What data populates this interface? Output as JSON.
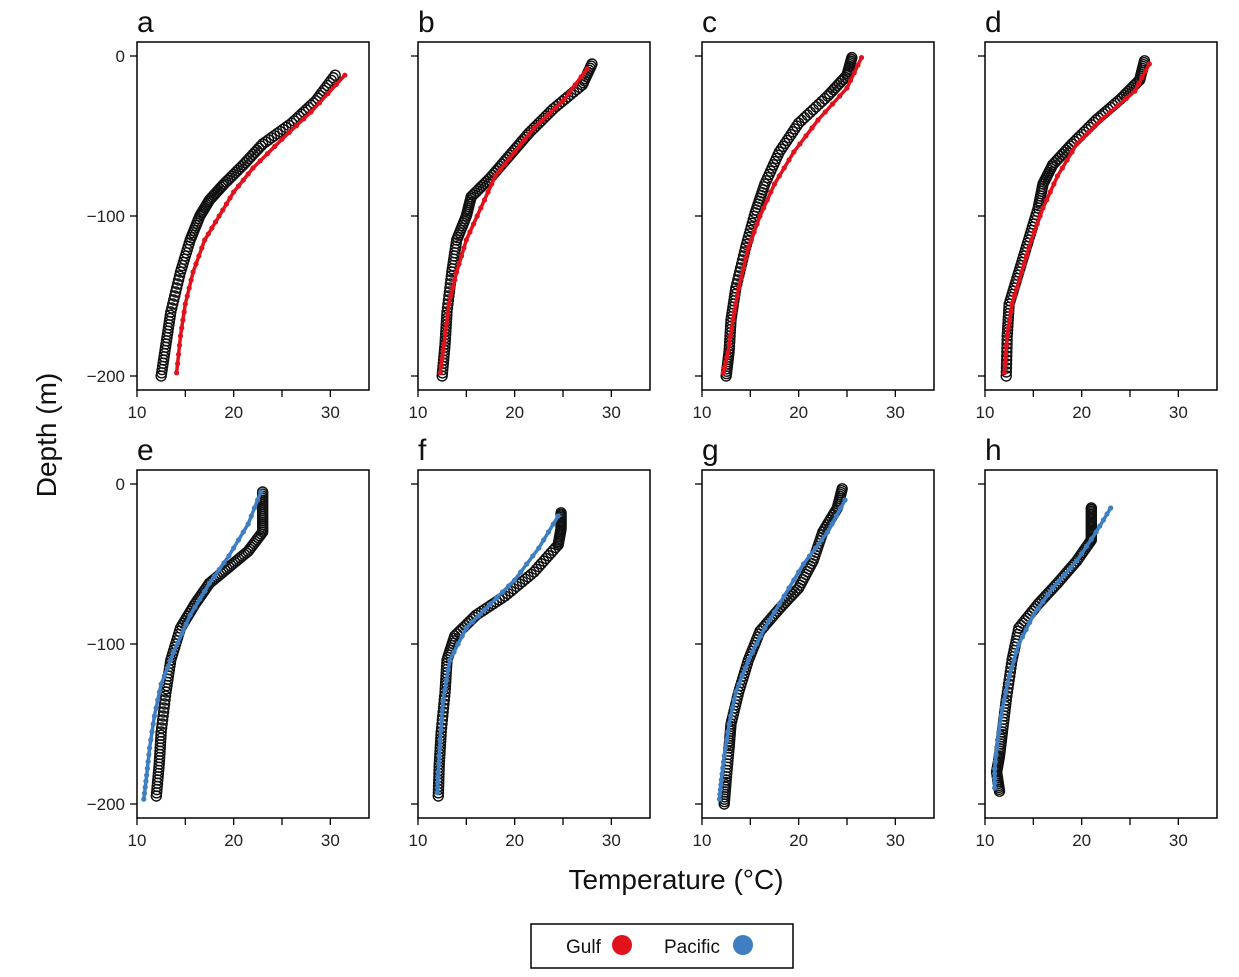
{
  "chart_data": {
    "type": "scatter",
    "xlabel": "Temperature (°C)",
    "ylabel": "Depth (m)",
    "xlim": [
      10,
      34
    ],
    "ylim": [
      -200,
      0
    ],
    "x_ticks": [
      10,
      20,
      30
    ],
    "y_ticks": [
      0,
      -100,
      -200
    ],
    "observed_marker": "open black circles",
    "legend": {
      "position": "bottom-center",
      "entries": [
        {
          "label": "Gulf",
          "color": "#e0121c"
        },
        {
          "label": "Pacific",
          "color": "#3f7ec0"
        }
      ]
    },
    "panels": [
      {
        "label": "a",
        "model": "Gulf",
        "observed": [
          [
            30.5,
            -12
          ],
          [
            28.5,
            -28
          ],
          [
            26,
            -42
          ],
          [
            23,
            -55
          ],
          [
            21,
            -68
          ],
          [
            19,
            -80
          ],
          [
            17.5,
            -90
          ],
          [
            16.5,
            -100
          ],
          [
            15.5,
            -115
          ],
          [
            14.5,
            -135
          ],
          [
            13.5,
            -160
          ],
          [
            13,
            -180
          ],
          [
            12.5,
            -200
          ]
        ],
        "model_profile": [
          [
            31.5,
            -12
          ],
          [
            28,
            -35
          ],
          [
            25,
            -52
          ],
          [
            22,
            -70
          ],
          [
            20,
            -85
          ],
          [
            18.5,
            -100
          ],
          [
            17,
            -115
          ],
          [
            15.8,
            -135
          ],
          [
            15,
            -155
          ],
          [
            14.5,
            -175
          ],
          [
            14.1,
            -198
          ]
        ]
      },
      {
        "label": "b",
        "model": "Gulf",
        "observed": [
          [
            28,
            -5
          ],
          [
            27,
            -18
          ],
          [
            24,
            -33
          ],
          [
            21.5,
            -48
          ],
          [
            19.5,
            -62
          ],
          [
            17.5,
            -76
          ],
          [
            15.5,
            -88
          ],
          [
            15,
            -100
          ],
          [
            14,
            -115
          ],
          [
            13.5,
            -135
          ],
          [
            13,
            -160
          ],
          [
            12.8,
            -180
          ],
          [
            12.5,
            -200
          ]
        ],
        "model_profile": [
          [
            27.5,
            -8
          ],
          [
            25,
            -28
          ],
          [
            22,
            -45
          ],
          [
            20,
            -60
          ],
          [
            18,
            -75
          ],
          [
            16.5,
            -95
          ],
          [
            15,
            -115
          ],
          [
            14,
            -135
          ],
          [
            13.2,
            -155
          ],
          [
            12.7,
            -180
          ],
          [
            12.3,
            -198
          ]
        ]
      },
      {
        "label": "c",
        "model": "Gulf",
        "observed": [
          [
            25.5,
            -1
          ],
          [
            25,
            -12
          ],
          [
            23,
            -25
          ],
          [
            20,
            -42
          ],
          [
            18,
            -60
          ],
          [
            16.5,
            -80
          ],
          [
            15.5,
            -98
          ],
          [
            14.5,
            -120
          ],
          [
            13.5,
            -145
          ],
          [
            13,
            -165
          ],
          [
            12.8,
            -185
          ],
          [
            12.5,
            -200
          ]
        ],
        "model_profile": [
          [
            26.5,
            -1
          ],
          [
            25,
            -20
          ],
          [
            22,
            -40
          ],
          [
            19.5,
            -60
          ],
          [
            17.5,
            -80
          ],
          [
            16,
            -100
          ],
          [
            14.8,
            -120
          ],
          [
            13.8,
            -145
          ],
          [
            13.2,
            -165
          ],
          [
            12.7,
            -185
          ],
          [
            12.2,
            -198
          ]
        ]
      },
      {
        "label": "d",
        "model": "Gulf",
        "observed": [
          [
            26.5,
            -3
          ],
          [
            26,
            -15
          ],
          [
            24,
            -27
          ],
          [
            21.5,
            -40
          ],
          [
            19,
            -55
          ],
          [
            17,
            -68
          ],
          [
            16,
            -80
          ],
          [
            15.5,
            -95
          ],
          [
            14.5,
            -115
          ],
          [
            13.5,
            -135
          ],
          [
            12.5,
            -155
          ],
          [
            12.3,
            -175
          ],
          [
            12.2,
            -200
          ]
        ],
        "model_profile": [
          [
            27,
            -5
          ],
          [
            25.5,
            -22
          ],
          [
            22,
            -40
          ],
          [
            19.5,
            -55
          ],
          [
            17.5,
            -75
          ],
          [
            16,
            -95
          ],
          [
            14.8,
            -115
          ],
          [
            13.8,
            -135
          ],
          [
            12.8,
            -155
          ],
          [
            12.3,
            -175
          ],
          [
            12,
            -198
          ]
        ]
      },
      {
        "label": "e",
        "model": "Pacific",
        "observed": [
          [
            23,
            -5
          ],
          [
            23,
            -18
          ],
          [
            23,
            -30
          ],
          [
            21.5,
            -42
          ],
          [
            19.5,
            -52
          ],
          [
            17.5,
            -62
          ],
          [
            16,
            -75
          ],
          [
            14.5,
            -90
          ],
          [
            13.5,
            -110
          ],
          [
            13,
            -130
          ],
          [
            12.5,
            -155
          ],
          [
            12.3,
            -175
          ],
          [
            12,
            -195
          ]
        ],
        "model_profile": [
          [
            22.8,
            -5
          ],
          [
            21.5,
            -25
          ],
          [
            19.5,
            -45
          ],
          [
            17.5,
            -62
          ],
          [
            15.5,
            -82
          ],
          [
            13.8,
            -105
          ],
          [
            12.5,
            -125
          ],
          [
            11.8,
            -145
          ],
          [
            11.3,
            -165
          ],
          [
            11,
            -182
          ],
          [
            10.7,
            -197
          ]
        ]
      },
      {
        "label": "f",
        "model": "Pacific",
        "observed": [
          [
            24.8,
            -18
          ],
          [
            24.8,
            -28
          ],
          [
            24.5,
            -38
          ],
          [
            22,
            -55
          ],
          [
            19,
            -70
          ],
          [
            16,
            -82
          ],
          [
            13.8,
            -95
          ],
          [
            13,
            -110
          ],
          [
            12.8,
            -130
          ],
          [
            12.4,
            -155
          ],
          [
            12.2,
            -175
          ],
          [
            12.1,
            -195
          ]
        ],
        "model_profile": [
          [
            24.5,
            -20
          ],
          [
            22.5,
            -40
          ],
          [
            20,
            -60
          ],
          [
            17.5,
            -75
          ],
          [
            15,
            -90
          ],
          [
            13.3,
            -110
          ],
          [
            12.6,
            -135
          ],
          [
            12.3,
            -160
          ],
          [
            12.1,
            -180
          ],
          [
            12,
            -193
          ]
        ]
      },
      {
        "label": "g",
        "model": "Pacific",
        "observed": [
          [
            24.5,
            -3
          ],
          [
            24,
            -15
          ],
          [
            22.5,
            -30
          ],
          [
            21.5,
            -48
          ],
          [
            20,
            -65
          ],
          [
            18,
            -78
          ],
          [
            16,
            -92
          ],
          [
            14.8,
            -110
          ],
          [
            13.8,
            -130
          ],
          [
            13,
            -150
          ],
          [
            12.8,
            -165
          ],
          [
            12.5,
            -185
          ],
          [
            12.3,
            -200
          ]
        ],
        "model_profile": [
          [
            24.8,
            -10
          ],
          [
            23,
            -30
          ],
          [
            20.5,
            -50
          ],
          [
            18.5,
            -70
          ],
          [
            16.5,
            -90
          ],
          [
            14.8,
            -110
          ],
          [
            13.5,
            -130
          ],
          [
            12.8,
            -150
          ],
          [
            12.3,
            -170
          ],
          [
            12,
            -185
          ],
          [
            11.8,
            -197
          ]
        ]
      },
      {
        "label": "h",
        "model": "Pacific",
        "observed": [
          [
            21,
            -15
          ],
          [
            21,
            -25
          ],
          [
            21,
            -35
          ],
          [
            19.5,
            -48
          ],
          [
            17.5,
            -62
          ],
          [
            15.5,
            -75
          ],
          [
            13.5,
            -90
          ],
          [
            12.8,
            -110
          ],
          [
            12.2,
            -135
          ],
          [
            11.8,
            -155
          ],
          [
            11.5,
            -170
          ],
          [
            11.2,
            -180
          ],
          [
            11.5,
            -192
          ]
        ],
        "model_profile": [
          [
            23,
            -15
          ],
          [
            21.5,
            -30
          ],
          [
            19.5,
            -48
          ],
          [
            17,
            -65
          ],
          [
            15,
            -82
          ],
          [
            13.5,
            -100
          ],
          [
            12.5,
            -120
          ],
          [
            11.8,
            -140
          ],
          [
            11.3,
            -160
          ],
          [
            11,
            -178
          ],
          [
            11,
            -190
          ]
        ]
      }
    ]
  }
}
